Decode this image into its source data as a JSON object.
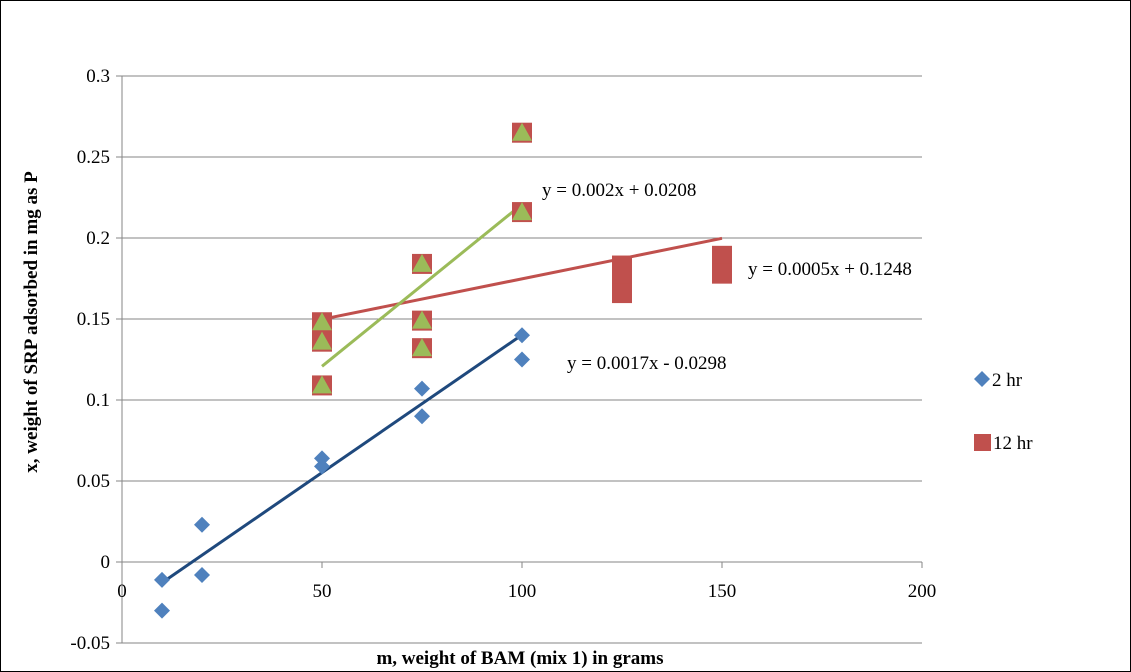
{
  "chart_data": {
    "type": "scatter",
    "xlabel": "m, weight of BAM (mix 1) in grams",
    "ylabel": "x, weight of SRP adsorbed in mg as P",
    "xlim": [
      0,
      200
    ],
    "ylim": [
      -0.05,
      0.3
    ],
    "x_ticks": [
      0,
      50,
      100,
      150,
      200
    ],
    "y_ticks": [
      -0.05,
      0,
      0.05,
      0.1,
      0.15,
      0.2,
      0.25,
      0.3
    ],
    "x_tick_labels": [
      "0",
      "50",
      "100",
      "150",
      "200"
    ],
    "y_tick_labels": [
      "-0.05",
      "0",
      "0.05",
      "0.1",
      "0.15",
      "0.2",
      "0.25",
      "0.3"
    ],
    "grid": "horizontal",
    "legend_position": "right",
    "series": [
      {
        "name": "2 hr",
        "marker": "diamond",
        "color": "#4f81bd",
        "points": [
          [
            10,
            -0.011
          ],
          [
            10,
            -0.03
          ],
          [
            20,
            0.023
          ],
          [
            20,
            -0.008
          ],
          [
            50,
            0.064
          ],
          [
            50,
            0.059
          ],
          [
            75,
            0.107
          ],
          [
            75,
            0.09
          ],
          [
            100,
            0.14
          ],
          [
            100,
            0.125
          ]
        ],
        "trendline": {
          "equation": "y = 0.0017x - 0.0298",
          "slope": 0.0017,
          "intercept": -0.0298,
          "x_range": [
            10,
            100
          ],
          "color": "#1f497d"
        }
      },
      {
        "name": "12 hr",
        "marker": "square",
        "color": "#c0504d",
        "points": [
          [
            50,
            0.148
          ],
          [
            50,
            0.136
          ],
          [
            50,
            0.109
          ],
          [
            75,
            0.184
          ],
          [
            75,
            0.149
          ],
          [
            75,
            0.132
          ],
          [
            100,
            0.265
          ],
          [
            100,
            0.216
          ],
          [
            125,
            0.183
          ],
          [
            125,
            0.175
          ],
          [
            125,
            0.166
          ],
          [
            150,
            0.189
          ],
          [
            150,
            0.178
          ]
        ],
        "trendline": {
          "equation": "y = 0.0005x + 0.1248",
          "slope": 0.0005,
          "intercept": 0.1248,
          "x_range": [
            50,
            150
          ],
          "color": "#c0504d"
        }
      },
      {
        "name": "",
        "marker": "triangle",
        "color": "#9bbb59",
        "points": [
          [
            50,
            0.148
          ],
          [
            50,
            0.136
          ],
          [
            50,
            0.109
          ],
          [
            75,
            0.184
          ],
          [
            75,
            0.149
          ],
          [
            75,
            0.132
          ],
          [
            100,
            0.265
          ],
          [
            100,
            0.216
          ]
        ],
        "trendline": {
          "equation": "y = 0.002x + 0.0208",
          "slope": 0.002,
          "intercept": 0.0208,
          "x_range": [
            50,
            100
          ],
          "color": "#9bbb59"
        }
      }
    ]
  }
}
